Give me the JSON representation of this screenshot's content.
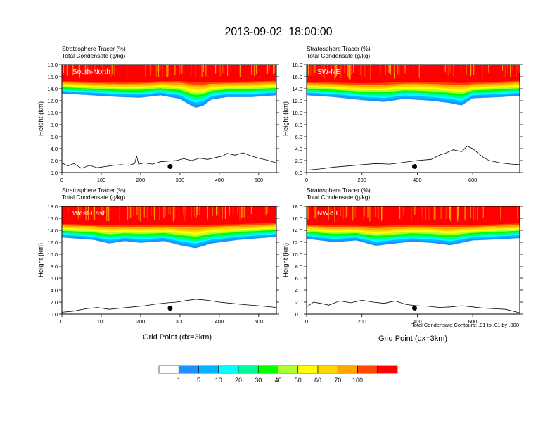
{
  "figure": {
    "title": "2013-09-02_18:00:00",
    "field_label_1": "Stratosphere Tracer   (%)",
    "field_label_2": "Total Condensate   (g/kg)",
    "xlabel": "Grid Point (dx=3km)",
    "ylabel": "Height (km)",
    "contour_note": "Total Condensate Contours: .01 to .01 by .000"
  },
  "chart_data": {
    "type": "heatmap",
    "title": "2013-09-02_18:00:00",
    "ylabel": "Height (km)",
    "xlabel": "Grid Point (dx=3km)",
    "ylim": [
      0,
      18
    ],
    "yticks": [
      "0.0",
      "2.0",
      "4.0",
      "6.0",
      "8.0",
      "10.0",
      "12.0",
      "14.0",
      "16.0",
      "18.0"
    ],
    "colorbar": {
      "labels": [
        "1",
        "5",
        "10",
        "20",
        "30",
        "40",
        "50",
        "60",
        "70",
        "100"
      ],
      "colors": [
        "#ffffff",
        "#1e90ff",
        "#00b7ff",
        "#00ffff",
        "#00fa9a",
        "#00ff00",
        "#adff2f",
        "#ffff00",
        "#ffd700",
        "#ffa500",
        "#ff4500",
        "#ff0000"
      ]
    },
    "panels": [
      {
        "name": "South-North",
        "xlim": [
          0,
          545
        ],
        "xticks": [
          0,
          100,
          200,
          300,
          400,
          500
        ],
        "terrain": [
          [
            0,
            1.6
          ],
          [
            15,
            1.1
          ],
          [
            30,
            1.5
          ],
          [
            50,
            0.7
          ],
          [
            70,
            1.2
          ],
          [
            90,
            0.8
          ],
          [
            110,
            1.0
          ],
          [
            130,
            1.2
          ],
          [
            150,
            1.3
          ],
          [
            170,
            1.2
          ],
          [
            185,
            1.5
          ],
          [
            190,
            2.8
          ],
          [
            195,
            1.4
          ],
          [
            210,
            1.6
          ],
          [
            230,
            1.4
          ],
          [
            250,
            1.8
          ],
          [
            270,
            1.9
          ],
          [
            290,
            2.0
          ],
          [
            310,
            2.3
          ],
          [
            330,
            2.0
          ],
          [
            350,
            2.4
          ],
          [
            370,
            2.2
          ],
          [
            390,
            2.5
          ],
          [
            410,
            2.8
          ],
          [
            420,
            3.2
          ],
          [
            440,
            2.9
          ],
          [
            460,
            3.3
          ],
          [
            480,
            2.8
          ],
          [
            500,
            2.4
          ],
          [
            520,
            2.1
          ],
          [
            545,
            1.6
          ]
        ],
        "site": {
          "x": 275,
          "height": 1.0
        },
        "tracer_floor": [
          [
            0,
            13.2
          ],
          [
            100,
            12.8
          ],
          [
            150,
            12.6
          ],
          [
            200,
            12.5
          ],
          [
            250,
            12.9
          ],
          [
            300,
            12.3
          ],
          [
            320,
            11.5
          ],
          [
            340,
            10.8
          ],
          [
            360,
            11.2
          ],
          [
            380,
            12.2
          ],
          [
            420,
            12.6
          ],
          [
            480,
            12.6
          ],
          [
            545,
            12.9
          ]
        ],
        "tracer_top": [
          [
            0,
            15.5
          ],
          [
            150,
            15.3
          ],
          [
            300,
            15.6
          ],
          [
            400,
            15.4
          ],
          [
            545,
            15.6
          ]
        ]
      },
      {
        "name": "SW-NE",
        "xlim": [
          0,
          770
        ],
        "xticks": [
          0,
          200,
          400,
          600
        ],
        "terrain": [
          [
            0,
            0.4
          ],
          [
            50,
            0.6
          ],
          [
            100,
            0.9
          ],
          [
            150,
            1.1
          ],
          [
            200,
            1.3
          ],
          [
            250,
            1.5
          ],
          [
            300,
            1.4
          ],
          [
            350,
            1.7
          ],
          [
            400,
            2.0
          ],
          [
            450,
            2.2
          ],
          [
            480,
            2.9
          ],
          [
            500,
            3.2
          ],
          [
            530,
            3.8
          ],
          [
            560,
            3.5
          ],
          [
            580,
            4.4
          ],
          [
            600,
            4.0
          ],
          [
            620,
            3.2
          ],
          [
            640,
            2.5
          ],
          [
            660,
            2.0
          ],
          [
            700,
            1.6
          ],
          [
            740,
            1.4
          ],
          [
            770,
            1.3
          ]
        ],
        "site": {
          "x": 390,
          "height": 1.0
        },
        "tracer_floor": [
          [
            0,
            12.9
          ],
          [
            100,
            12.6
          ],
          [
            200,
            12.1
          ],
          [
            280,
            11.8
          ],
          [
            350,
            12.3
          ],
          [
            450,
            12.0
          ],
          [
            520,
            11.6
          ],
          [
            560,
            11.2
          ],
          [
            600,
            12.4
          ],
          [
            700,
            12.6
          ],
          [
            770,
            12.8
          ]
        ],
        "tracer_top": [
          [
            0,
            15.4
          ],
          [
            200,
            15.2
          ],
          [
            400,
            15.5
          ],
          [
            600,
            15.3
          ],
          [
            770,
            15.6
          ]
        ]
      },
      {
        "name": "West-East",
        "xlim": [
          0,
          545
        ],
        "xticks": [
          0,
          100,
          200,
          300,
          400,
          500
        ],
        "terrain": [
          [
            0,
            0.3
          ],
          [
            30,
            0.5
          ],
          [
            60,
            0.9
          ],
          [
            90,
            1.1
          ],
          [
            120,
            0.8
          ],
          [
            150,
            1.0
          ],
          [
            180,
            1.2
          ],
          [
            210,
            1.4
          ],
          [
            240,
            1.7
          ],
          [
            270,
            1.9
          ],
          [
            290,
            2.0
          ],
          [
            310,
            2.2
          ],
          [
            340,
            2.5
          ],
          [
            370,
            2.3
          ],
          [
            400,
            2.0
          ],
          [
            430,
            1.8
          ],
          [
            460,
            1.6
          ],
          [
            500,
            1.4
          ],
          [
            545,
            1.1
          ]
        ],
        "site": {
          "x": 275,
          "height": 1.0
        },
        "tracer_floor": [
          [
            0,
            12.8
          ],
          [
            80,
            12.4
          ],
          [
            120,
            11.8
          ],
          [
            160,
            12.2
          ],
          [
            200,
            11.9
          ],
          [
            260,
            12.2
          ],
          [
            300,
            11.5
          ],
          [
            340,
            11.0
          ],
          [
            380,
            11.8
          ],
          [
            450,
            12.4
          ],
          [
            545,
            12.9
          ]
        ],
        "tracer_top": [
          [
            0,
            15.3
          ],
          [
            150,
            15.1
          ],
          [
            300,
            15.2
          ],
          [
            450,
            15.3
          ],
          [
            545,
            15.5
          ]
        ]
      },
      {
        "name": "NW-SE",
        "xlim": [
          0,
          770
        ],
        "xticks": [
          0,
          200,
          400,
          600
        ],
        "terrain": [
          [
            0,
            1.2
          ],
          [
            25,
            2.0
          ],
          [
            50,
            1.8
          ],
          [
            80,
            1.5
          ],
          [
            120,
            2.2
          ],
          [
            160,
            1.9
          ],
          [
            200,
            2.3
          ],
          [
            240,
            2.0
          ],
          [
            280,
            1.8
          ],
          [
            320,
            2.2
          ],
          [
            360,
            1.6
          ],
          [
            400,
            1.4
          ],
          [
            440,
            1.3
          ],
          [
            480,
            1.1
          ],
          [
            520,
            1.2
          ],
          [
            560,
            1.4
          ],
          [
            600,
            1.2
          ],
          [
            640,
            1.0
          ],
          [
            680,
            0.9
          ],
          [
            720,
            0.8
          ],
          [
            770,
            0.2
          ]
        ],
        "site": {
          "x": 390,
          "height": 1.0
        },
        "tracer_floor": [
          [
            0,
            12.6
          ],
          [
            100,
            12.0
          ],
          [
            180,
            12.3
          ],
          [
            250,
            11.4
          ],
          [
            320,
            11.8
          ],
          [
            380,
            12.1
          ],
          [
            450,
            11.9
          ],
          [
            520,
            11.5
          ],
          [
            600,
            12.3
          ],
          [
            700,
            12.5
          ],
          [
            770,
            12.7
          ]
        ],
        "tracer_top": [
          [
            0,
            15.2
          ],
          [
            200,
            15.0
          ],
          [
            400,
            15.2
          ],
          [
            600,
            15.1
          ],
          [
            770,
            15.4
          ]
        ]
      }
    ]
  }
}
